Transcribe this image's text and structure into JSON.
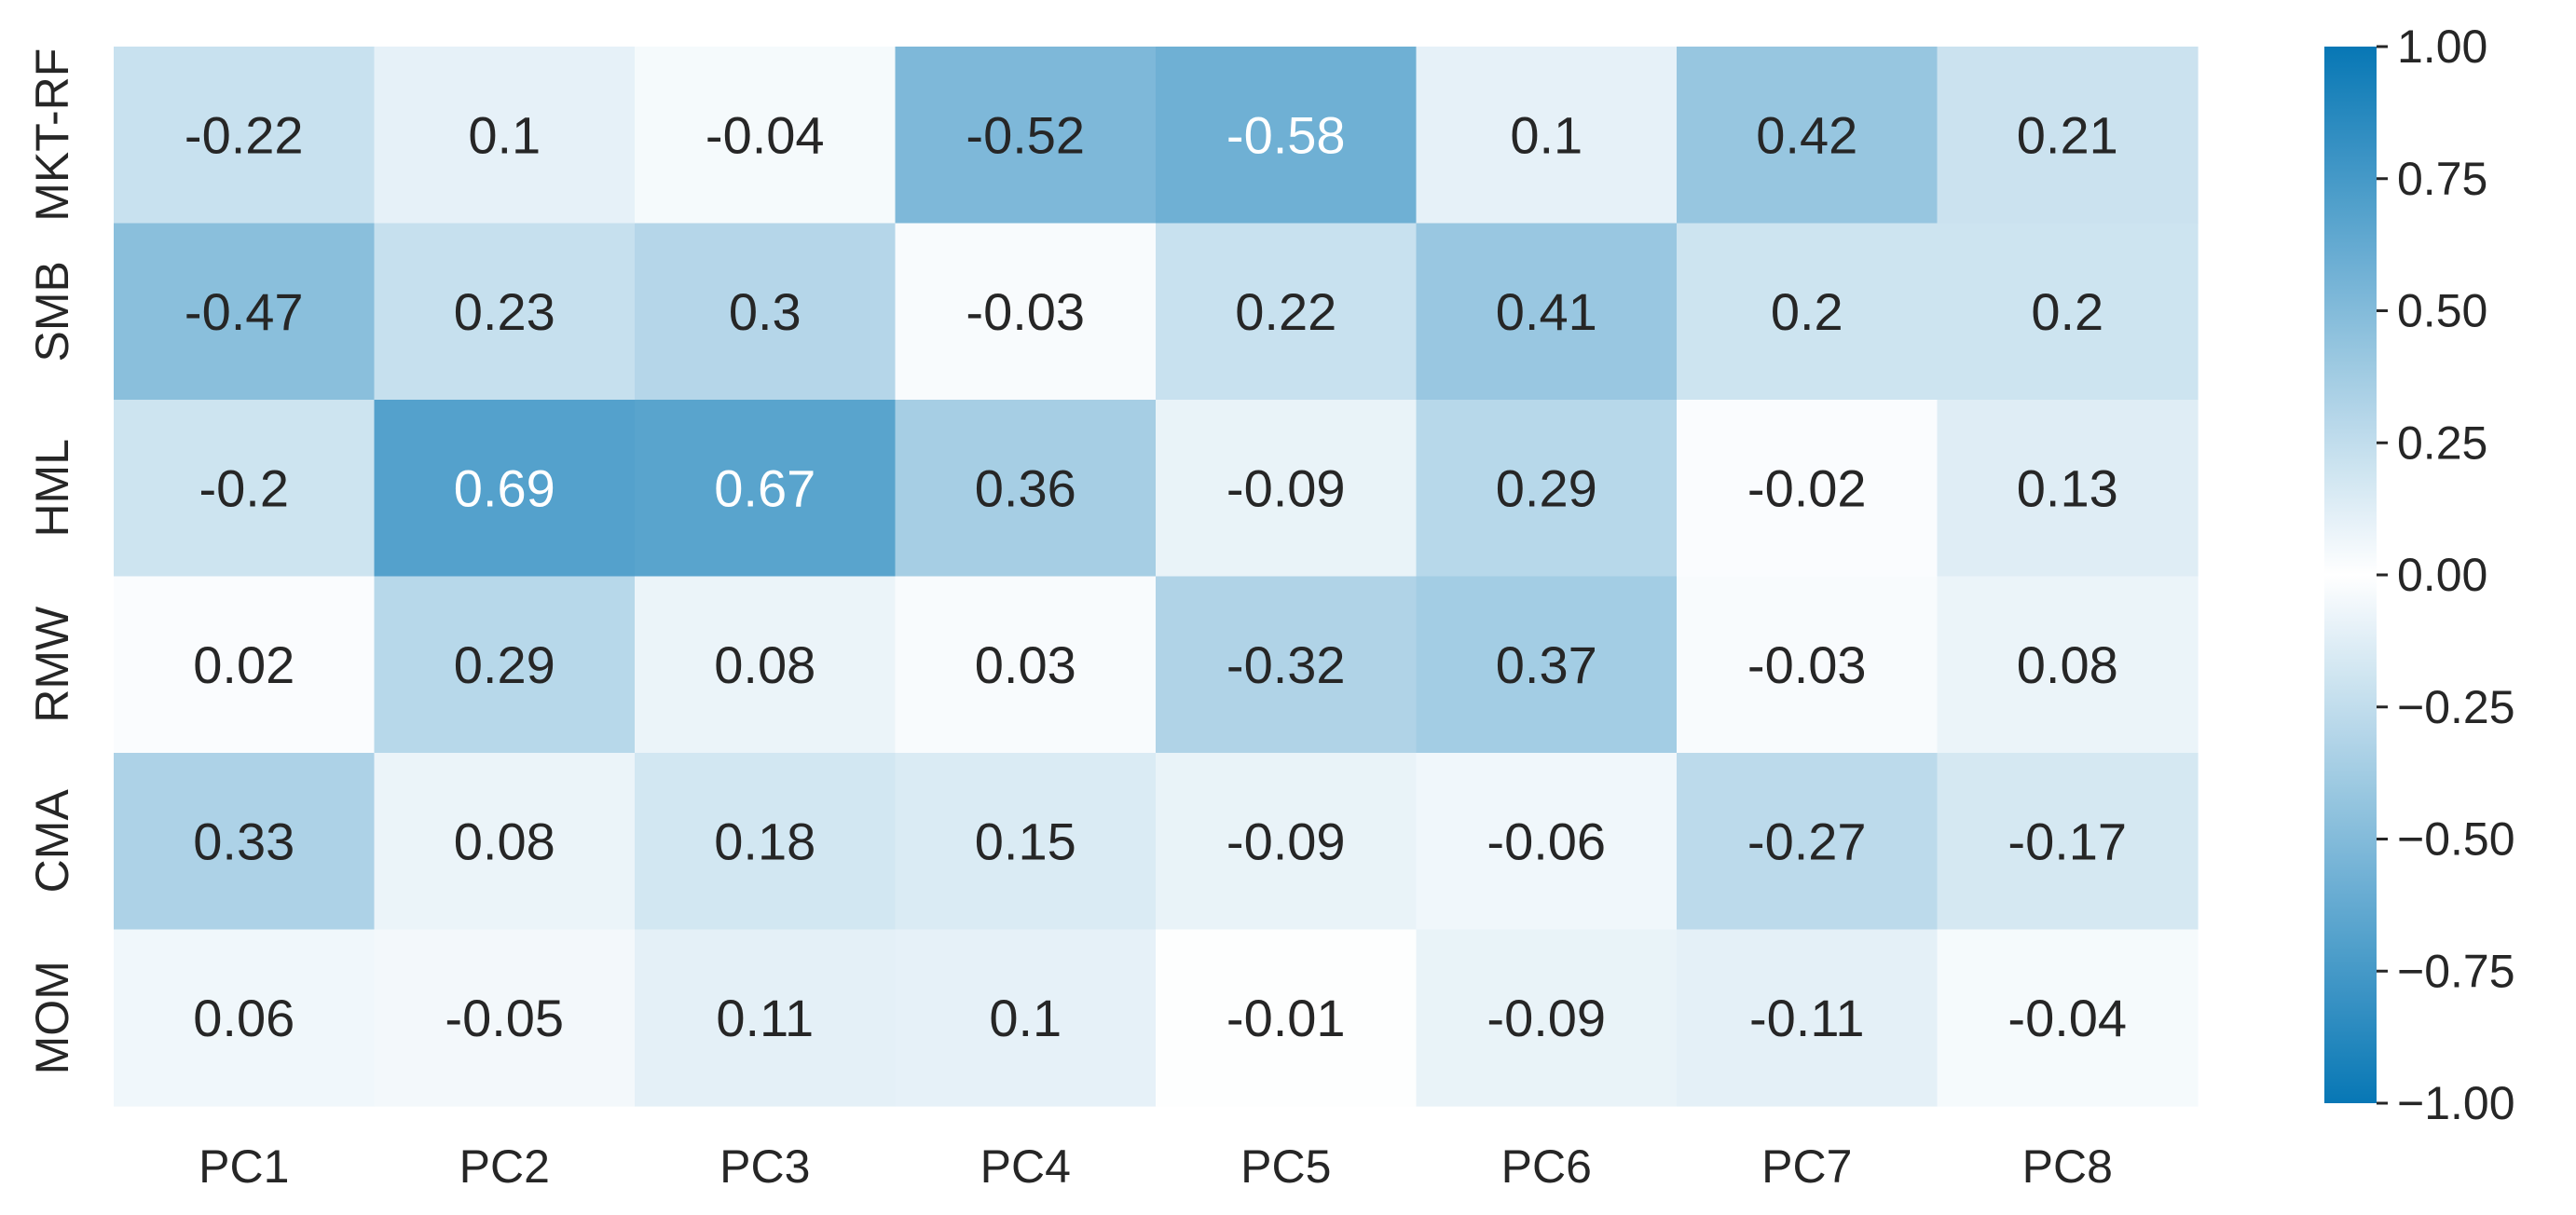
{
  "chart_data": {
    "type": "heatmap",
    "x_categories": [
      "PC1",
      "PC2",
      "PC3",
      "PC4",
      "PC5",
      "PC6",
      "PC7",
      "PC8"
    ],
    "y_categories": [
      "MKT-RF",
      "SMB",
      "HML",
      "RMW",
      "CMA",
      "MOM"
    ],
    "values": [
      [
        -0.22,
        0.1,
        -0.04,
        -0.52,
        -0.58,
        0.1,
        0.42,
        0.21
      ],
      [
        -0.47,
        0.23,
        0.3,
        -0.03,
        0.22,
        0.41,
        0.2,
        0.2
      ],
      [
        -0.2,
        0.69,
        0.67,
        0.36,
        -0.09,
        0.29,
        -0.02,
        0.13
      ],
      [
        0.02,
        0.29,
        0.08,
        0.03,
        -0.32,
        0.37,
        -0.03,
        0.08
      ],
      [
        0.33,
        0.08,
        0.18,
        0.15,
        -0.09,
        -0.06,
        -0.27,
        -0.17
      ],
      [
        0.06,
        -0.05,
        0.11,
        0.1,
        -0.01,
        -0.09,
        -0.11,
        -0.04
      ]
    ],
    "value_labels": [
      [
        "-0.22",
        "0.1",
        "-0.04",
        "-0.52",
        "-0.58",
        "0.1",
        "0.42",
        "0.21"
      ],
      [
        "-0.47",
        "0.23",
        "0.3",
        "-0.03",
        "0.22",
        "0.41",
        "0.2",
        "0.2"
      ],
      [
        "-0.2",
        "0.69",
        "0.67",
        "0.36",
        "-0.09",
        "0.29",
        "-0.02",
        "0.13"
      ],
      [
        "0.02",
        "0.29",
        "0.08",
        "0.03",
        "-0.32",
        "0.37",
        "-0.03",
        "0.08"
      ],
      [
        "0.33",
        "0.08",
        "0.18",
        "0.15",
        "-0.09",
        "-0.06",
        "-0.27",
        "-0.17"
      ],
      [
        "0.06",
        "-0.05",
        "0.11",
        "0.1",
        "-0.01",
        "-0.09",
        "-0.11",
        "-0.04"
      ]
    ],
    "colorscale": {
      "range": [
        -1.0,
        1.0
      ],
      "center": 0.0,
      "color_extreme": "#0777b5",
      "color_center": "#ffffff",
      "symmetric_magnitude": true
    },
    "colorbar": {
      "ticks": [
        1.0,
        0.75,
        0.5,
        0.25,
        0.0,
        -0.25,
        -0.5,
        -0.75,
        -1.0
      ],
      "tick_labels": [
        "1.00",
        "0.75",
        "0.50",
        "0.25",
        "0.00",
        "−0.25",
        "−0.50",
        "−0.75",
        "−1.00"
      ],
      "placement": "right"
    },
    "text_color_dark": "#262626",
    "text_color_light": "#ffffff",
    "text_light_threshold": 0.55,
    "title": "",
    "xlabel": "",
    "ylabel": "",
    "grid": false
  }
}
